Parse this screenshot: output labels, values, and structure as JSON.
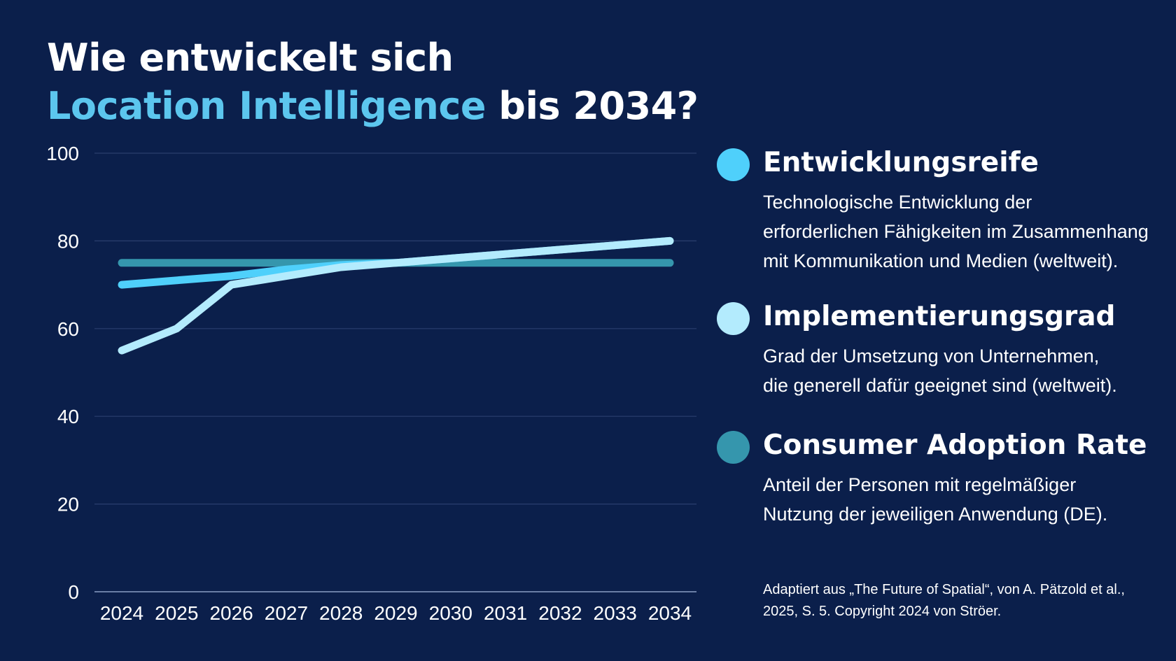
{
  "title": {
    "line1": "Wie entwickelt sich",
    "line2_accent": "Location Intelligence",
    "line2_rest": " bis 2034?"
  },
  "colors": {
    "background": "#0b1f4b",
    "accent_title": "#5cc6ee",
    "grid": "#2a3f6e",
    "axis": "#6a7ea6"
  },
  "chart_data": {
    "type": "line",
    "title": "Wie entwickelt sich Location Intelligence bis 2034?",
    "xlabel": "",
    "ylabel": "",
    "x": [
      "2024",
      "2025",
      "2026",
      "2027",
      "2028",
      "2029",
      "2030",
      "2031",
      "2032",
      "2033",
      "2034"
    ],
    "ylim": [
      0,
      100
    ],
    "yticks": [
      0,
      20,
      40,
      60,
      80,
      100
    ],
    "grid": true,
    "series": [
      {
        "name": "Entwicklungsreife",
        "color": "#4fd0fb",
        "values": [
          70,
          71,
          72,
          73.5,
          74.5,
          75,
          76,
          77,
          78,
          79,
          80
        ]
      },
      {
        "name": "Implementierungsgrad",
        "color": "#b3ebfd",
        "values": [
          55,
          60,
          70,
          72,
          74,
          75,
          76,
          77,
          78,
          79,
          80
        ]
      },
      {
        "name": "Consumer Adoption Rate",
        "color": "#3596ad",
        "values": [
          75,
          75,
          75,
          75,
          75,
          75,
          75,
          75,
          75,
          75,
          75
        ]
      }
    ]
  },
  "legend": [
    {
      "title": "Entwicklungsreife",
      "color": "#4fd0fb",
      "desc": [
        "Technologische Entwicklung der",
        "erforderlichen Fähigkeiten im Zusammenhang",
        "mit Kommunikation und Medien (weltweit)."
      ]
    },
    {
      "title": "Implementierungsgrad",
      "color": "#b3ebfd",
      "desc": [
        "Grad der Umsetzung von Unternehmen,",
        "die generell dafür geeignet sind (weltweit)."
      ]
    },
    {
      "title": "Consumer Adoption Rate",
      "color": "#3596ad",
      "desc": [
        "Anteil der Personen mit regelmäßiger",
        "Nutzung der jeweiligen Anwendung (DE)."
      ]
    }
  ],
  "source": {
    "line1": "Adaptiert aus „The Future of Spatial“, von A. Pätzold et al.,",
    "line2": "2025, S. 5. Copyright 2024 von Ströer."
  }
}
